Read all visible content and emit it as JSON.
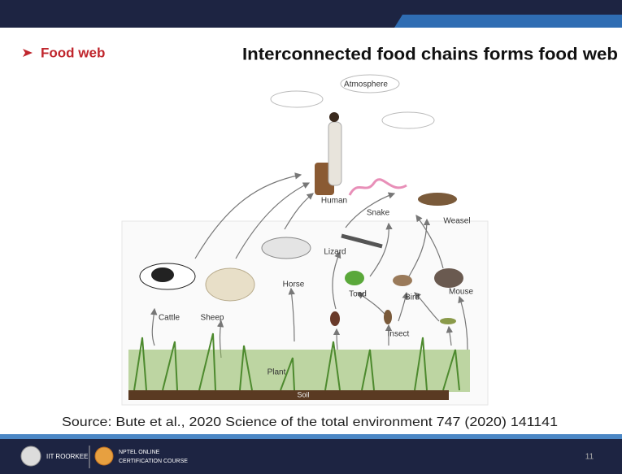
{
  "slide": {
    "bullet": "Food web",
    "heading": "Interconnected food chains forms food web",
    "source": "Source: Bute et al., 2020 Science of the total environment 747 (2020) 141141"
  },
  "diagram": {
    "labels": [
      "Atmosphere",
      "Human",
      "Snake",
      "Weasel",
      "Lizard",
      "Cattle",
      "Sheep",
      "Horse",
      "Toad",
      "Bird",
      "Mouse",
      "Insect",
      "Plant",
      "Soil"
    ]
  },
  "footer": {
    "institute": "IIT ROORKEE",
    "course_line1": "NPTEL ONLINE",
    "course_line2": "CERTIFICATION COURSE",
    "page": "11"
  }
}
